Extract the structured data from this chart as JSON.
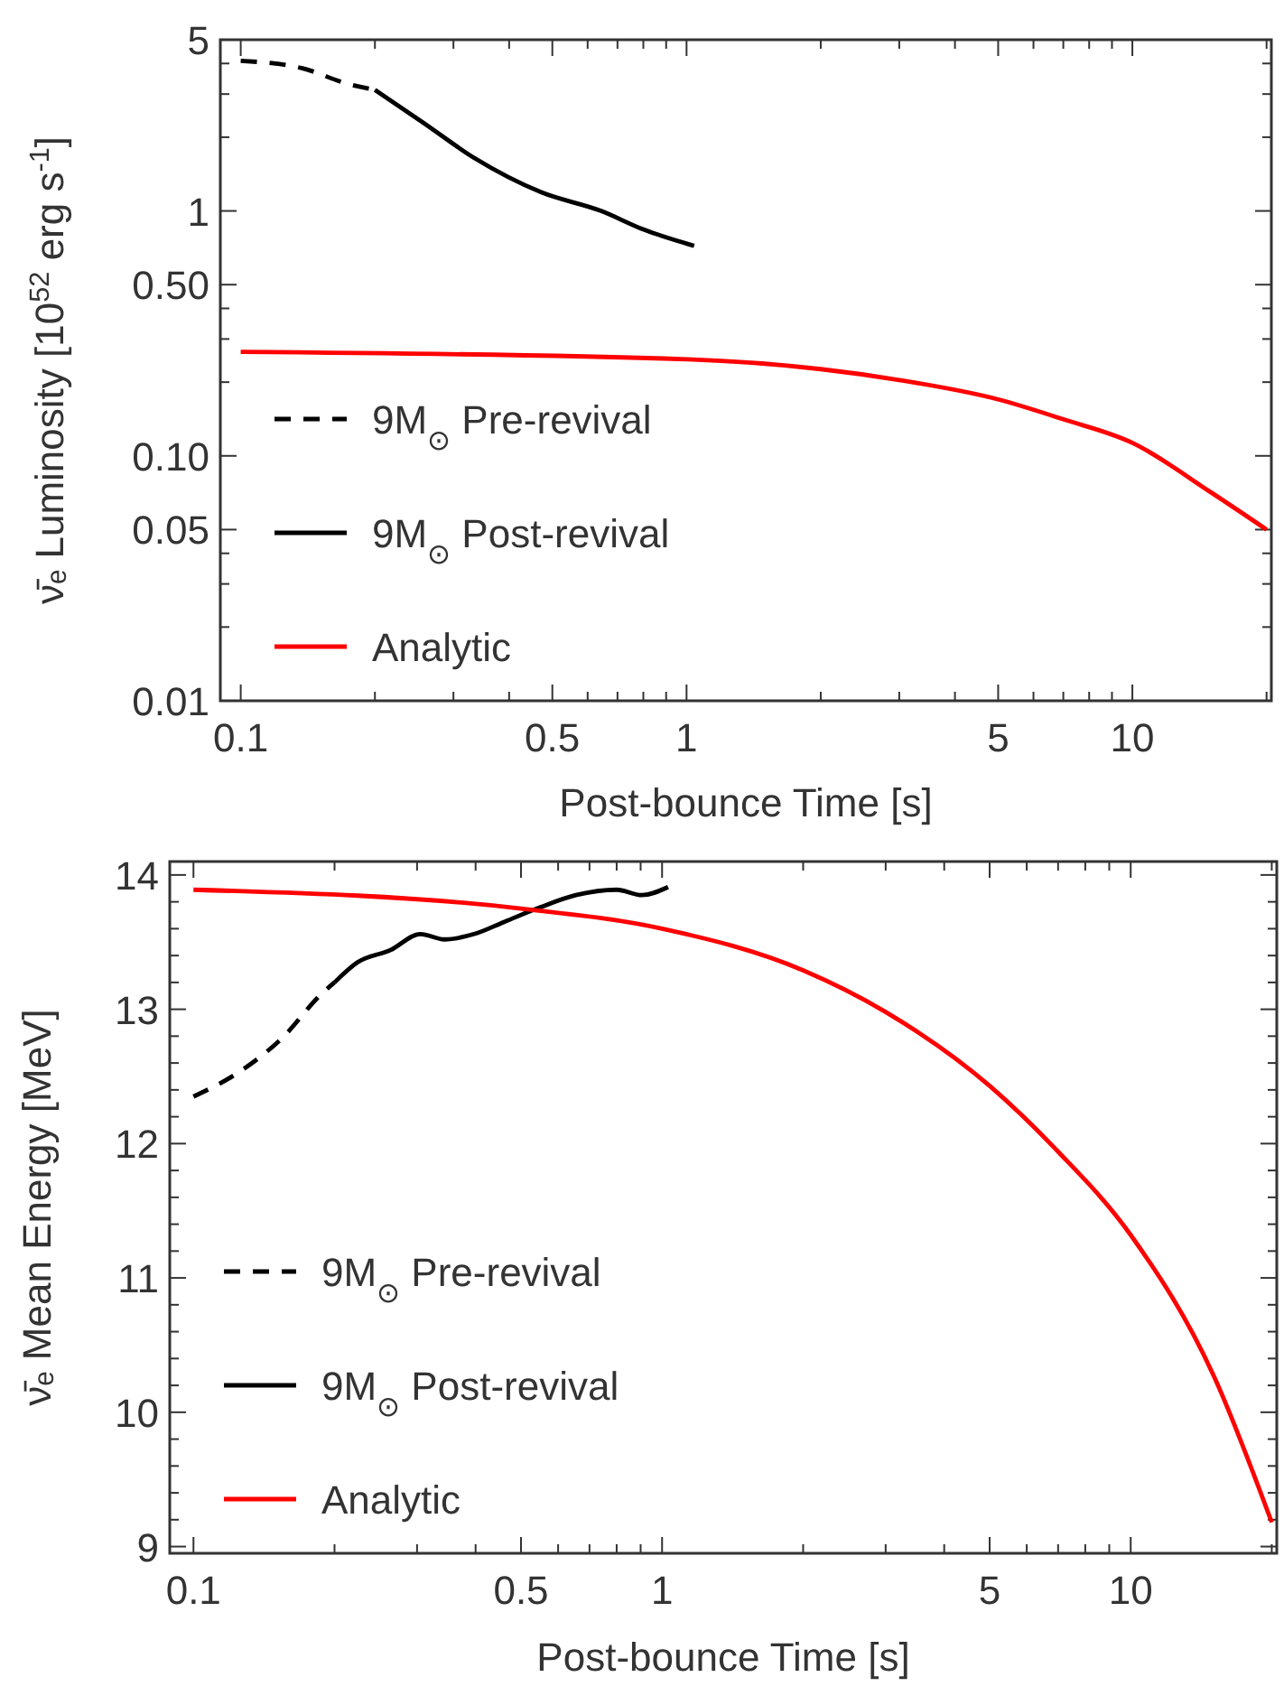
{
  "chart_data": [
    {
      "type": "line",
      "xlabel": "Post-bounce Time [s]",
      "ylabel": "ν̄ₑ Luminosity [10$^{52}$ erg s$^{-1}$]",
      "log": "xy",
      "legend": "bottom left",
      "xlim": [
        0.09,
        20.5
      ],
      "ylim": [
        0.01,
        5
      ],
      "xticks": [
        0.1,
        {
          "value": 0.2,
          "label": null
        },
        {
          "value": 0.3,
          "label": null
        },
        {
          "value": 0.4,
          "label": null
        },
        0.5,
        {
          "value": 0.6,
          "label": null
        },
        {
          "value": 0.7,
          "label": null
        },
        {
          "value": 0.8,
          "label": null
        },
        {
          "value": 0.9,
          "label": null
        },
        1,
        {
          "value": 2,
          "label": null
        },
        {
          "value": 3,
          "label": null
        },
        {
          "value": 4,
          "label": null
        },
        5,
        {
          "value": 6,
          "label": null
        },
        {
          "value": 7,
          "label": null
        },
        {
          "value": 8,
          "label": null
        },
        {
          "value": 9,
          "label": null
        },
        10,
        {
          "value": 20,
          "label": null
        }
      ],
      "yticks": [
        0.01,
        {
          "value": 0.02,
          "label": null
        },
        {
          "value": 0.03,
          "label": null
        },
        {
          "value": 0.04,
          "label": null
        },
        0.05,
        {
          "value": 0.1,
          "label": "0.10"
        },
        {
          "value": 0.2,
          "label": null
        },
        {
          "value": 0.3,
          "label": null
        },
        {
          "value": 0.4,
          "label": null
        },
        {
          "value": 0.5,
          "label": "0.50"
        },
        1,
        {
          "value": 2,
          "label": null
        },
        {
          "value": 3,
          "label": null
        },
        {
          "value": 4,
          "label": null
        },
        5
      ],
      "series": [
        {
          "name": "9M$_{⊙}$ Pre-revival",
          "color": "#000000",
          "line_style": "dashed",
          "x": [
            0.1,
            0.137,
            0.175,
            0.2
          ],
          "values": [
            4.1,
            3.83,
            3.29,
            3.12
          ]
        },
        {
          "name": "9M$_{⊙}$ Post-revival",
          "color": "#000000",
          "line_style": "solid",
          "x": [
            0.2,
            0.256,
            0.335,
            0.473,
            0.643,
            0.8,
            1.04
          ],
          "values": [
            3.12,
            2.3,
            1.64,
            1.19,
            1.0,
            0.84,
            0.72
          ]
        },
        {
          "name": "Analytic",
          "color": "#ff0000",
          "line_style": "solid",
          "x": [
            0.1,
            1,
            2,
            3,
            5,
            7,
            10,
            15,
            20
          ],
          "values": [
            0.266,
            0.248,
            0.226,
            0.204,
            0.17,
            0.141,
            0.113,
            0.071,
            0.05
          ]
        }
      ]
    },
    {
      "type": "line",
      "xlabel": "Post-bounce Time [s]",
      "ylabel": "ν̄ₑ Mean Energy [MeV]",
      "log": "x",
      "legend": "bottom left",
      "xlim": [
        0.089,
        20.5
      ],
      "ylim": [
        8.95,
        14.1
      ],
      "xticks": [
        0.1,
        {
          "value": 0.2,
          "label": null
        },
        {
          "value": 0.3,
          "label": null
        },
        {
          "value": 0.4,
          "label": null
        },
        0.5,
        {
          "value": 0.6,
          "label": null
        },
        {
          "value": 0.7,
          "label": null
        },
        {
          "value": 0.8,
          "label": null
        },
        {
          "value": 0.9,
          "label": null
        },
        1,
        {
          "value": 2,
          "label": null
        },
        {
          "value": 3,
          "label": null
        },
        {
          "value": 4,
          "label": null
        },
        5,
        {
          "value": 6,
          "label": null
        },
        {
          "value": 7,
          "label": null
        },
        {
          "value": 8,
          "label": null
        },
        {
          "value": 9,
          "label": null
        },
        10,
        {
          "value": 20,
          "label": null
        }
      ],
      "yticks": [
        9,
        {
          "value": 9.2,
          "label": null
        },
        {
          "value": 9.4,
          "label": null
        },
        {
          "value": 9.6,
          "label": null
        },
        {
          "value": 9.8,
          "label": null
        },
        10,
        {
          "value": 10.2,
          "label": null
        },
        {
          "value": 10.4,
          "label": null
        },
        {
          "value": 10.6,
          "label": null
        },
        {
          "value": 10.8,
          "label": null
        },
        11,
        {
          "value": 11.2,
          "label": null
        },
        {
          "value": 11.4,
          "label": null
        },
        {
          "value": 11.6,
          "label": null
        },
        {
          "value": 11.8,
          "label": null
        },
        12,
        {
          "value": 12.2,
          "label": null
        },
        {
          "value": 12.4,
          "label": null
        },
        {
          "value": 12.6,
          "label": null
        },
        {
          "value": 12.8,
          "label": null
        },
        13,
        {
          "value": 13.2,
          "label": null
        },
        {
          "value": 13.4,
          "label": null
        },
        {
          "value": 13.6,
          "label": null
        },
        {
          "value": 13.8,
          "label": null
        },
        14
      ],
      "series": [
        {
          "name": "9M$_{⊙}$ Pre-revival",
          "color": "#000000",
          "line_style": "dashed",
          "x": [
            0.1,
            0.126,
            0.155,
            0.187,
            0.2
          ],
          "values": [
            12.35,
            12.54,
            12.79,
            13.11,
            13.2
          ]
        },
        {
          "name": "9M$_{⊙}$ Post-revival",
          "color": "#000000",
          "line_style": "solid",
          "x": [
            0.2,
            0.224,
            0.263,
            0.305,
            0.343,
            0.397,
            0.46,
            0.55,
            0.655,
            0.8,
            0.905,
            1.03
          ],
          "values": [
            13.2,
            13.35,
            13.44,
            13.56,
            13.52,
            13.56,
            13.65,
            13.76,
            13.85,
            13.89,
            13.85,
            13.91
          ]
        },
        {
          "name": "Analytic",
          "color": "#ff0000",
          "line_style": "solid",
          "x": [
            0.1,
            0.5,
            1,
            2,
            3,
            5,
            7,
            10,
            15,
            20
          ],
          "values": [
            13.89,
            13.75,
            13.6,
            13.29,
            12.98,
            12.43,
            11.94,
            11.32,
            10.28,
            9.18
          ]
        }
      ]
    }
  ]
}
